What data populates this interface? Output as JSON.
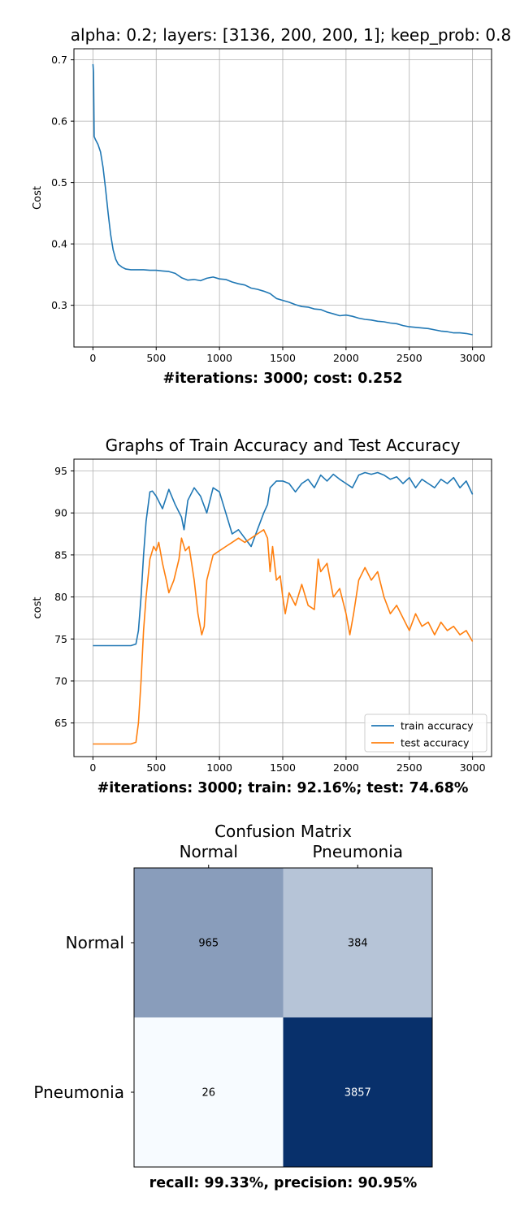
{
  "chart_data": [
    {
      "type": "line",
      "title": "alpha: 0.2; layers: [3136, 200, 200, 1]; keep_prob: 0.8",
      "xlabel": "#iterations: 3000; cost: 0.252",
      "ylabel": "Cost",
      "xlim": [
        -150,
        3150
      ],
      "ylim": [
        0.232,
        0.718
      ],
      "xticks": [
        0,
        500,
        1000,
        1500,
        2000,
        2500,
        3000
      ],
      "yticks": [
        0.3,
        0.4,
        0.5,
        0.6,
        0.7
      ],
      "ytick_labels": [
        "0.3",
        "0.4",
        "0.5",
        "0.6",
        "0.7"
      ],
      "grid": true,
      "legend": "none",
      "series": [
        {
          "color": "#1f77b4",
          "x": [
            0,
            5,
            10,
            20,
            40,
            60,
            80,
            100,
            120,
            140,
            160,
            180,
            200,
            230,
            260,
            300,
            350,
            400,
            450,
            500,
            550,
            600,
            650,
            700,
            750,
            800,
            850,
            900,
            950,
            1000,
            1050,
            1100,
            1150,
            1200,
            1250,
            1300,
            1350,
            1400,
            1450,
            1500,
            1550,
            1600,
            1650,
            1700,
            1750,
            1800,
            1850,
            1900,
            1950,
            2000,
            2050,
            2100,
            2150,
            2200,
            2250,
            2300,
            2350,
            2400,
            2450,
            2500,
            2550,
            2600,
            2650,
            2700,
            2750,
            2800,
            2850,
            2900,
            2950,
            3000
          ],
          "values": [
            0.693,
            0.68,
            0.575,
            0.57,
            0.562,
            0.55,
            0.525,
            0.49,
            0.45,
            0.415,
            0.39,
            0.375,
            0.367,
            0.362,
            0.359,
            0.358,
            0.358,
            0.358,
            0.357,
            0.357,
            0.356,
            0.355,
            0.352,
            0.345,
            0.341,
            0.342,
            0.34,
            0.344,
            0.346,
            0.343,
            0.342,
            0.338,
            0.335,
            0.333,
            0.328,
            0.326,
            0.323,
            0.319,
            0.311,
            0.308,
            0.305,
            0.301,
            0.298,
            0.297,
            0.294,
            0.293,
            0.289,
            0.286,
            0.283,
            0.284,
            0.282,
            0.279,
            0.277,
            0.276,
            0.274,
            0.273,
            0.271,
            0.27,
            0.267,
            0.265,
            0.264,
            0.263,
            0.262,
            0.26,
            0.258,
            0.257,
            0.255,
            0.255,
            0.254,
            0.252
          ]
        }
      ]
    },
    {
      "type": "line",
      "title": "Graphs of Train Accuracy and Test Accuracy",
      "xlabel": "#iterations: 3000; train: 92.16%; test: 74.68%",
      "ylabel": "cost",
      "xlim": [
        -150,
        3150
      ],
      "ylim": [
        61.0,
        96.4
      ],
      "xticks": [
        0,
        500,
        1000,
        1500,
        2000,
        2500,
        3000
      ],
      "yticks": [
        65,
        70,
        75,
        80,
        85,
        90,
        95
      ],
      "ytick_labels": [
        "65",
        "70",
        "75",
        "80",
        "85",
        "90",
        "95"
      ],
      "grid": true,
      "legend": "lower-right",
      "series": [
        {
          "name": "train accuracy",
          "color": "#1f77b4",
          "x": [
            0,
            100,
            200,
            300,
            340,
            360,
            380,
            400,
            420,
            450,
            470,
            500,
            550,
            600,
            650,
            700,
            720,
            750,
            800,
            850,
            900,
            950,
            1000,
            1050,
            1080,
            1100,
            1150,
            1200,
            1250,
            1300,
            1350,
            1380,
            1400,
            1450,
            1500,
            1550,
            1600,
            1650,
            1700,
            1750,
            1800,
            1850,
            1900,
            1950,
            2000,
            2050,
            2100,
            2150,
            2200,
            2250,
            2300,
            2350,
            2400,
            2450,
            2500,
            2550,
            2600,
            2650,
            2700,
            2750,
            2800,
            2850,
            2900,
            2950,
            3000
          ],
          "values": [
            74.2,
            74.2,
            74.2,
            74.2,
            74.4,
            76.0,
            80.0,
            85.0,
            89.0,
            92.5,
            92.6,
            92.0,
            90.5,
            92.8,
            91.0,
            89.5,
            88.0,
            91.5,
            93.0,
            92.0,
            90.0,
            93.0,
            92.5,
            90.0,
            88.5,
            87.5,
            88.0,
            87.0,
            86.0,
            88.0,
            90.0,
            91.0,
            93.0,
            93.8,
            93.8,
            93.5,
            92.5,
            93.5,
            94.0,
            93.0,
            94.5,
            93.8,
            94.6,
            94.0,
            93.5,
            93.0,
            94.5,
            94.8,
            94.6,
            94.8,
            94.5,
            94.0,
            94.3,
            93.5,
            94.2,
            93.0,
            94.0,
            93.5,
            93.0,
            94.0,
            93.5,
            94.2,
            93.0,
            93.8,
            92.2
          ]
        },
        {
          "name": "test accuracy",
          "color": "#ff7f0e",
          "x": [
            0,
            100,
            200,
            300,
            340,
            360,
            380,
            400,
            420,
            450,
            480,
            500,
            520,
            550,
            580,
            600,
            640,
            680,
            700,
            730,
            760,
            800,
            830,
            860,
            880,
            900,
            950,
            1000,
            1050,
            1100,
            1150,
            1200,
            1250,
            1300,
            1350,
            1380,
            1400,
            1420,
            1450,
            1480,
            1500,
            1520,
            1550,
            1600,
            1650,
            1700,
            1750,
            1780,
            1800,
            1850,
            1900,
            1950,
            2000,
            2030,
            2060,
            2100,
            2150,
            2200,
            2250,
            2300,
            2350,
            2400,
            2450,
            2500,
            2550,
            2600,
            2650,
            2700,
            2750,
            2800,
            2850,
            2900,
            2950,
            3000
          ],
          "values": [
            62.5,
            62.5,
            62.5,
            62.5,
            62.7,
            65.0,
            70.0,
            76.0,
            80.0,
            84.5,
            86.0,
            85.5,
            86.5,
            84.0,
            82.0,
            80.5,
            82.0,
            84.5,
            87.0,
            85.5,
            86.0,
            82.0,
            78.0,
            75.5,
            76.5,
            82.0,
            85.0,
            85.5,
            86.0,
            86.5,
            87.0,
            86.5,
            87.0,
            87.5,
            88.0,
            87.0,
            83.0,
            86.0,
            82.0,
            82.5,
            80.0,
            78.0,
            80.5,
            79.0,
            81.5,
            79.0,
            78.5,
            84.5,
            83.0,
            84.0,
            80.0,
            81.0,
            78.0,
            75.5,
            78.0,
            82.0,
            83.5,
            82.0,
            83.0,
            80.0,
            78.0,
            79.0,
            77.5,
            76.0,
            78.0,
            76.5,
            77.0,
            75.5,
            77.0,
            76.0,
            76.5,
            75.5,
            76.0,
            74.7
          ]
        }
      ]
    },
    {
      "type": "heatmap",
      "title": "Confusion Matrix",
      "xlabel": "recall: 99.33%, precision: 90.95%",
      "x_categories": [
        "Normal",
        "Pneumonia"
      ],
      "y_categories": [
        "Normal",
        "Pneumonia"
      ],
      "values": [
        [
          965,
          384
        ],
        [
          26,
          3857
        ]
      ],
      "colormap": "Blues"
    }
  ]
}
